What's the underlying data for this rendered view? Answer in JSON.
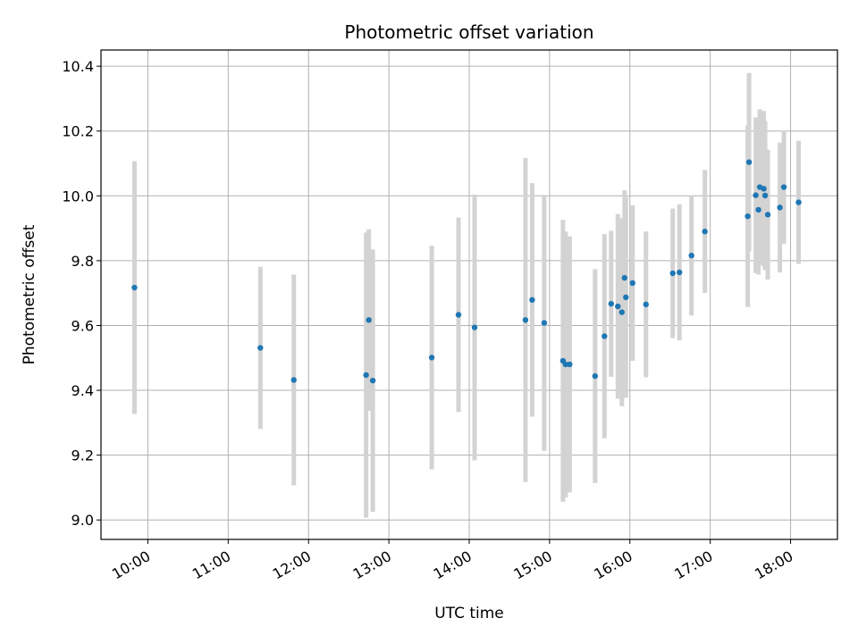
{
  "chart_data": {
    "type": "scatter",
    "title": "Photometric offset variation",
    "xlabel": "UTC time",
    "ylabel": "Photometric offset",
    "x_unit": "UTC hours",
    "xlim": [
      "09:25",
      "18:35"
    ],
    "ylim": [
      8.94,
      10.45
    ],
    "grid": true,
    "x_ticks": [
      "10:00",
      "11:00",
      "12:00",
      "13:00",
      "14:00",
      "15:00",
      "16:00",
      "17:00",
      "18:00"
    ],
    "y_ticks": [
      "9.0",
      "9.2",
      "9.4",
      "9.6",
      "9.8",
      "10.0",
      "10.2",
      "10.4"
    ],
    "point_color": "#1f77b4",
    "errorbar_color": "#d3d3d3",
    "points": [
      {
        "x": "09:50",
        "y": 9.717,
        "err": 0.39
      },
      {
        "x": "11:24",
        "y": 9.531,
        "err": 0.25
      },
      {
        "x": "11:49",
        "y": 9.432,
        "err": 0.325
      },
      {
        "x": "12:43",
        "y": 9.447,
        "err": 0.44
      },
      {
        "x": "12:45",
        "y": 9.617,
        "err": 0.28
      },
      {
        "x": "12:48",
        "y": 9.43,
        "err": 0.405
      },
      {
        "x": "13:32",
        "y": 9.501,
        "err": 0.345
      },
      {
        "x": "13:52",
        "y": 9.633,
        "err": 0.3
      },
      {
        "x": "14:04",
        "y": 9.594,
        "err": 0.41
      },
      {
        "x": "14:42",
        "y": 9.617,
        "err": 0.5
      },
      {
        "x": "14:47",
        "y": 9.679,
        "err": 0.36
      },
      {
        "x": "14:56",
        "y": 9.608,
        "err": 0.395
      },
      {
        "x": "15:10",
        "y": 9.491,
        "err": 0.435
      },
      {
        "x": "15:12",
        "y": 9.48,
        "err": 0.41
      },
      {
        "x": "15:15",
        "y": 9.48,
        "err": 0.395
      },
      {
        "x": "15:34",
        "y": 9.444,
        "err": 0.33
      },
      {
        "x": "15:41",
        "y": 9.567,
        "err": 0.315
      },
      {
        "x": "15:46",
        "y": 9.667,
        "err": 0.225
      },
      {
        "x": "15:51",
        "y": 9.659,
        "err": 0.285
      },
      {
        "x": "15:54",
        "y": 9.641,
        "err": 0.29
      },
      {
        "x": "15:56",
        "y": 9.747,
        "err": 0.27
      },
      {
        "x": "15:57",
        "y": 9.687,
        "err": 0.31
      },
      {
        "x": "16:02",
        "y": 9.731,
        "err": 0.24
      },
      {
        "x": "16:12",
        "y": 9.665,
        "err": 0.225
      },
      {
        "x": "16:32",
        "y": 9.761,
        "err": 0.2
      },
      {
        "x": "16:37",
        "y": 9.764,
        "err": 0.21
      },
      {
        "x": "16:46",
        "y": 9.816,
        "err": 0.185
      },
      {
        "x": "16:56",
        "y": 9.89,
        "err": 0.19
      },
      {
        "x": "17:28",
        "y": 9.937,
        "err": 0.28
      },
      {
        "x": "17:29",
        "y": 10.104,
        "err": 0.275
      },
      {
        "x": "17:34",
        "y": 10.002,
        "err": 0.24
      },
      {
        "x": "17:36",
        "y": 9.957,
        "err": 0.2
      },
      {
        "x": "17:37",
        "y": 10.027,
        "err": 0.24
      },
      {
        "x": "17:40",
        "y": 10.022,
        "err": 0.24
      },
      {
        "x": "17:41",
        "y": 10.001,
        "err": 0.23
      },
      {
        "x": "17:43",
        "y": 9.942,
        "err": 0.2
      },
      {
        "x": "17:52",
        "y": 9.964,
        "err": 0.2
      },
      {
        "x": "17:55",
        "y": 10.027,
        "err": 0.175
      },
      {
        "x": "18:06",
        "y": 9.98,
        "err": 0.19
      }
    ]
  }
}
